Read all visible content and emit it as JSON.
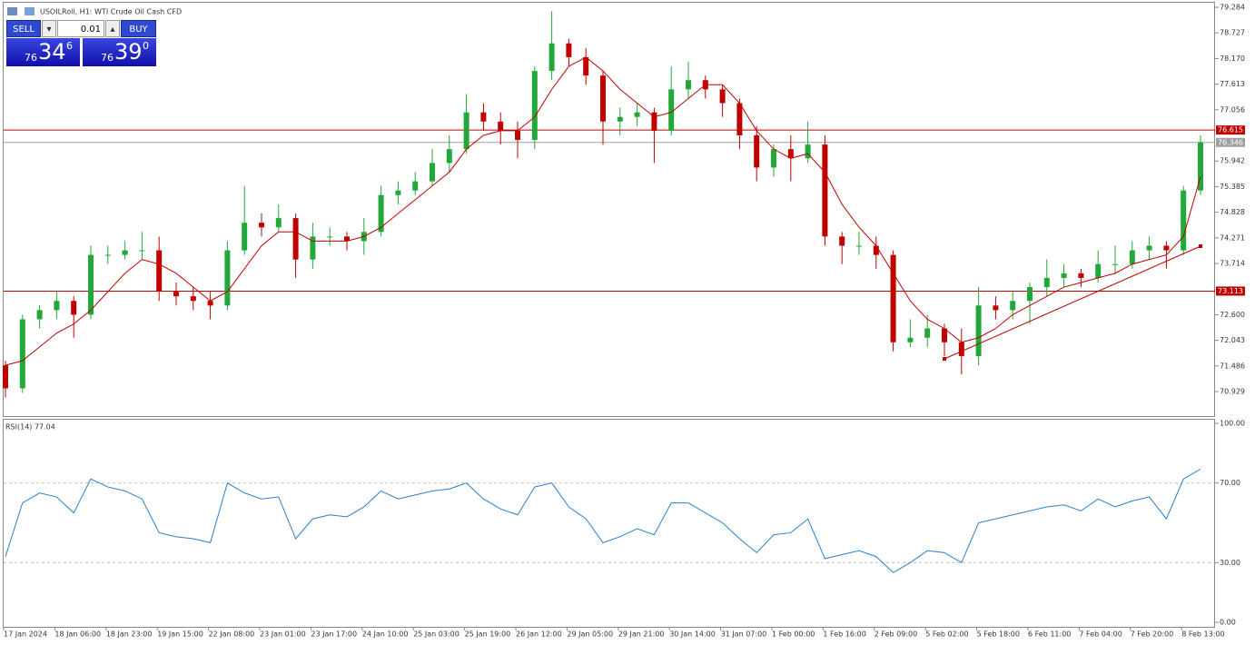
{
  "trade_panel": {
    "sell": "SELL",
    "buy": "BUY",
    "lot": "0.01",
    "sell_price": {
      "big": "76",
      "main": "34",
      "sup": "6"
    },
    "buy_price": {
      "big": "76",
      "main": "39",
      "sup": "0"
    }
  },
  "chart_data": [
    {
      "type": "candlestick",
      "title": "USOILRoll, H1:  WTI Crude Oil Cash CFD",
      "up_color": "#22a83a",
      "down_color": "#c00000",
      "ma_color": "#c00000",
      "categories": [
        "17 Jan 2024",
        null,
        null,
        "18 Jan 06:00",
        null,
        null,
        "18 Jan 23:00",
        null,
        null,
        "19 Jan 15:00",
        null,
        null,
        "22 Jan 08:00",
        null,
        null,
        "23 Jan 01:00",
        null,
        null,
        "23 Jan 17:00",
        null,
        null,
        "24 Jan 10:00",
        null,
        null,
        "25 Jan 03:00",
        null,
        null,
        "25 Jan 19:00",
        null,
        null,
        "26 Jan 12:00",
        null,
        null,
        "29 Jan 05:00",
        null,
        null,
        "29 Jan 21:00",
        null,
        null,
        "30 Jan 14:00",
        null,
        null,
        "31 Jan 07:00",
        null,
        null,
        "1 Feb 00:00",
        null,
        null,
        "1 Feb 16:00",
        null,
        null,
        "2 Feb 09:00",
        null,
        null,
        "5 Feb 02:00",
        null,
        null,
        "5 Feb 18:00",
        null,
        null,
        "6 Feb 11:00",
        null,
        null,
        "7 Feb 04:00",
        null,
        null,
        "7 Feb 20:00",
        null,
        null,
        "8 Feb 13:00",
        null
      ],
      "ohlc": [
        [
          71.5,
          71.6,
          70.8,
          71.0
        ],
        [
          71.0,
          72.6,
          70.9,
          72.5
        ],
        [
          72.5,
          72.8,
          72.3,
          72.7
        ],
        [
          72.7,
          73.1,
          72.5,
          72.9
        ],
        [
          72.9,
          73.0,
          72.1,
          72.6
        ],
        [
          72.6,
          74.1,
          72.5,
          73.9
        ],
        [
          73.9,
          74.1,
          73.7,
          73.9
        ],
        [
          73.9,
          74.2,
          73.8,
          74.0
        ],
        [
          74.0,
          74.4,
          73.8,
          74.0
        ],
        [
          74.0,
          74.3,
          72.9,
          73.1
        ],
        [
          73.1,
          73.3,
          72.8,
          73.0
        ],
        [
          73.0,
          73.2,
          72.7,
          72.9
        ],
        [
          72.9,
          73.1,
          72.5,
          72.8
        ],
        [
          72.8,
          74.2,
          72.7,
          74.0
        ],
        [
          74.0,
          75.4,
          73.9,
          74.6
        ],
        [
          74.6,
          74.8,
          74.3,
          74.5
        ],
        [
          74.5,
          75.0,
          74.4,
          74.7
        ],
        [
          74.7,
          74.8,
          73.4,
          73.8
        ],
        [
          73.8,
          74.6,
          73.6,
          74.3
        ],
        [
          74.3,
          74.5,
          74.1,
          74.3
        ],
        [
          74.3,
          74.4,
          74.0,
          74.2
        ],
        [
          74.2,
          74.7,
          73.9,
          74.4
        ],
        [
          74.4,
          75.4,
          74.3,
          75.2
        ],
        [
          75.2,
          75.5,
          75.0,
          75.3
        ],
        [
          75.3,
          75.7,
          75.2,
          75.5
        ],
        [
          75.5,
          76.2,
          75.4,
          75.9
        ],
        [
          75.9,
          76.5,
          75.7,
          76.2
        ],
        [
          76.2,
          77.4,
          76.1,
          77.0
        ],
        [
          77.0,
          77.2,
          76.6,
          76.8
        ],
        [
          76.8,
          77.0,
          76.3,
          76.6
        ],
        [
          76.6,
          76.8,
          76.0,
          76.4
        ],
        [
          76.4,
          78.0,
          76.2,
          77.9
        ],
        [
          77.9,
          79.2,
          77.7,
          78.5
        ],
        [
          78.5,
          78.6,
          78.0,
          78.2
        ],
        [
          78.2,
          78.4,
          77.6,
          77.8
        ],
        [
          77.8,
          77.9,
          76.3,
          76.8
        ],
        [
          76.8,
          77.1,
          76.5,
          76.9
        ],
        [
          76.9,
          77.2,
          76.7,
          77.0
        ],
        [
          77.0,
          77.1,
          75.9,
          76.6
        ],
        [
          76.6,
          78.0,
          76.5,
          77.5
        ],
        [
          77.5,
          78.1,
          77.3,
          77.7
        ],
        [
          77.7,
          77.8,
          77.3,
          77.5
        ],
        [
          77.5,
          77.6,
          76.9,
          77.2
        ],
        [
          77.2,
          77.3,
          76.2,
          76.5
        ],
        [
          76.5,
          76.7,
          75.5,
          75.8
        ],
        [
          75.8,
          76.3,
          75.6,
          76.2
        ],
        [
          76.2,
          76.5,
          75.5,
          76.0
        ],
        [
          76.0,
          76.8,
          75.9,
          76.3
        ],
        [
          76.3,
          76.5,
          74.1,
          74.3
        ],
        [
          74.3,
          74.4,
          73.7,
          74.1
        ],
        [
          74.1,
          74.4,
          73.9,
          74.1
        ],
        [
          74.1,
          74.3,
          73.6,
          73.9
        ],
        [
          73.9,
          74.0,
          71.8,
          72.0
        ],
        [
          72.0,
          72.5,
          71.9,
          72.1
        ],
        [
          72.1,
          72.6,
          71.9,
          72.3
        ],
        [
          72.3,
          72.4,
          71.7,
          72.0
        ],
        [
          72.0,
          72.3,
          71.3,
          71.7
        ],
        [
          71.7,
          73.2,
          71.5,
          72.8
        ],
        [
          72.8,
          73.0,
          72.5,
          72.7
        ],
        [
          72.7,
          73.1,
          72.5,
          72.9
        ],
        [
          72.9,
          73.3,
          72.4,
          73.2
        ],
        [
          73.2,
          73.8,
          73.0,
          73.4
        ],
        [
          73.4,
          73.7,
          73.2,
          73.5
        ],
        [
          73.5,
          73.6,
          73.2,
          73.4
        ],
        [
          73.4,
          74.0,
          73.3,
          73.7
        ],
        [
          73.7,
          74.1,
          73.5,
          73.7
        ],
        [
          73.7,
          74.2,
          73.6,
          74.0
        ],
        [
          74.0,
          74.3,
          73.8,
          74.1
        ],
        [
          74.1,
          74.2,
          73.6,
          74.0
        ],
        [
          74.0,
          75.4,
          73.9,
          75.3
        ],
        [
          75.3,
          76.5,
          75.2,
          76.35
        ]
      ],
      "ma": [
        71.5,
        71.6,
        71.9,
        72.2,
        72.4,
        72.7,
        73.1,
        73.5,
        73.8,
        73.7,
        73.5,
        73.2,
        72.9,
        73.1,
        73.6,
        74.1,
        74.4,
        74.4,
        74.2,
        74.2,
        74.2,
        74.3,
        74.5,
        74.8,
        75.1,
        75.4,
        75.7,
        76.2,
        76.5,
        76.6,
        76.6,
        76.9,
        77.5,
        78.0,
        78.2,
        77.9,
        77.5,
        77.2,
        76.9,
        77.0,
        77.3,
        77.6,
        77.6,
        77.2,
        76.6,
        76.2,
        76.0,
        76.1,
        75.7,
        75.0,
        74.5,
        74.1,
        73.5,
        72.9,
        72.5,
        72.3,
        72.0,
        72.1,
        72.3,
        72.6,
        72.8,
        73.0,
        73.2,
        73.3,
        73.4,
        73.5,
        73.7,
        73.8,
        73.9,
        74.3,
        75.6
      ],
      "hlines": [
        {
          "value": 76.615,
          "color": "#c00000"
        },
        {
          "value": 73.113,
          "color": "#c00000"
        },
        {
          "value": 76.346,
          "color": "#a0a0a0"
        }
      ],
      "trendline": {
        "x": [
          55,
          70
        ],
        "values": [
          71.64,
          74.09
        ],
        "color": "#c00000"
      },
      "ylim": [
        70.396,
        79.403
      ],
      "yticks": [
        79.284,
        78.727,
        {
          "value": 78.17,
          "label": "78.170"
        },
        77.613,
        77.056,
        75.942,
        75.385,
        74.828,
        74.271,
        73.714,
        {
          "value": 72.6,
          "label": "72.600"
        },
        72.043,
        71.486,
        70.929
      ]
    },
    {
      "type": "line",
      "title": "RSI(14) 77.04",
      "color": "#2a7fc9",
      "values": [
        33,
        60,
        65,
        63,
        55,
        72,
        68,
        66,
        62,
        45,
        43,
        42,
        40,
        70,
        65,
        62,
        63,
        42,
        52,
        54,
        53,
        58,
        66,
        62,
        64,
        66,
        67,
        70,
        62,
        57,
        54,
        68,
        70,
        58,
        52,
        40,
        43,
        47,
        44,
        60,
        60,
        55,
        50,
        42,
        35,
        44,
        45,
        52,
        32,
        34,
        36,
        33,
        25,
        30,
        36,
        35,
        30,
        50,
        52,
        54,
        56,
        58,
        59,
        56,
        62,
        58,
        61,
        63,
        52,
        72,
        77
      ],
      "ylim": [
        0,
        100
      ],
      "yticks": [
        {
          "value": 100,
          "label": "100.00"
        },
        {
          "value": 70,
          "label": "70.00"
        },
        {
          "value": 30,
          "label": "30.00"
        },
        {
          "value": 0,
          "label": "0.00"
        }
      ]
    }
  ]
}
